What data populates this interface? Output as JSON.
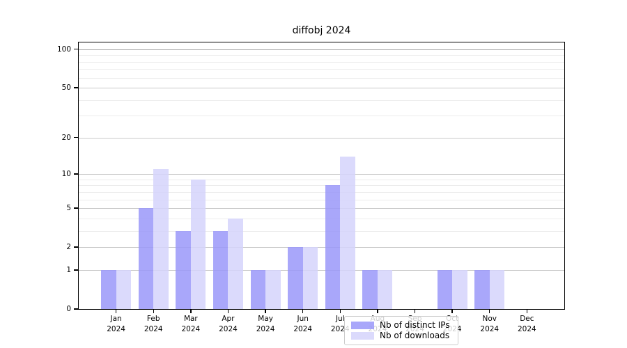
{
  "chart_data": {
    "type": "bar",
    "title": "diffobj 2024",
    "scale": "log1p",
    "categories": [
      "Jan",
      "Feb",
      "Mar",
      "Apr",
      "May",
      "Jun",
      "Jul",
      "Aug",
      "Sep",
      "Oct",
      "Nov",
      "Dec"
    ],
    "year": "2024",
    "series": [
      {
        "name": "Nb of distinct IPs",
        "color": "#9a98f9",
        "values": [
          1,
          5,
          3,
          3,
          1,
          2,
          8,
          1,
          0,
          1,
          1,
          0
        ]
      },
      {
        "name": "Nb of downloads",
        "color": "#d5d3fb",
        "values": [
          1,
          11,
          9,
          4,
          1,
          2,
          14,
          1,
          0,
          1,
          1,
          0
        ]
      }
    ],
    "xlabel": "",
    "ylabel": "",
    "yticks": [
      0,
      1,
      2,
      5,
      10,
      20,
      50,
      100
    ],
    "minor_gridlines": [
      3,
      4,
      6,
      7,
      8,
      9,
      30,
      40,
      60,
      70,
      80,
      90
    ],
    "ylim": [
      0,
      113
    ],
    "grid": "on",
    "legend_position": "inside-bottom-center"
  }
}
